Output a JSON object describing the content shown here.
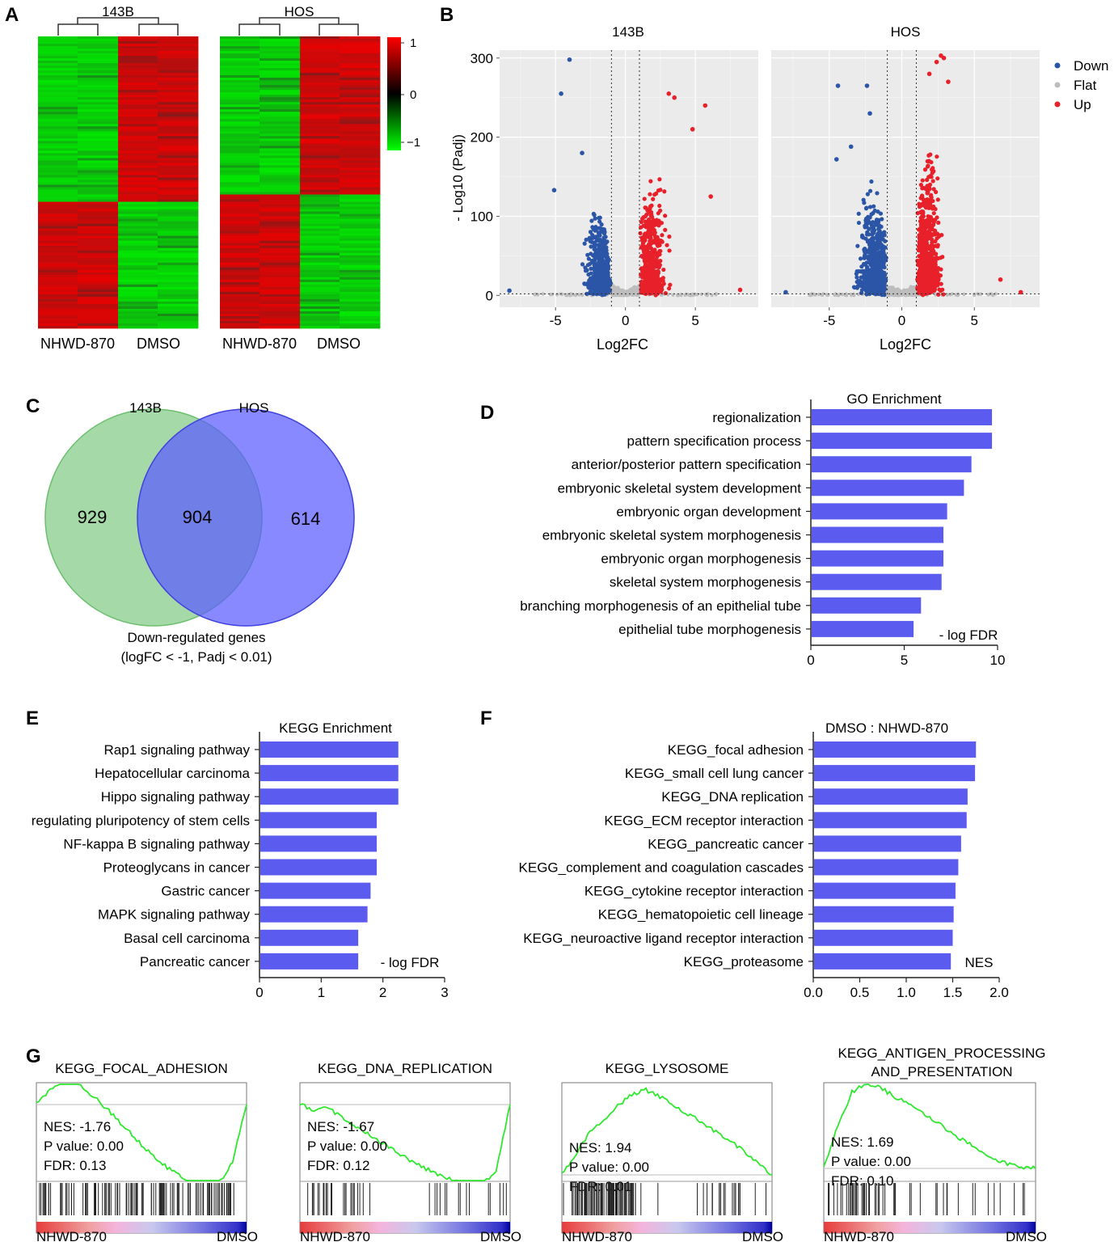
{
  "panel_labels": [
    "A",
    "B",
    "C",
    "D",
    "E",
    "F",
    "G"
  ],
  "panelA": {
    "heatmaps": [
      {
        "title": "143B",
        "samples": [
          "NHWD-870",
          "DMSO"
        ]
      },
      {
        "title": "HOS",
        "samples": [
          "NHWD-870",
          "DMSO"
        ]
      }
    ],
    "colorbar": {
      "ticks": [
        "1",
        "0",
        "−1"
      ],
      "high_color": "#ff0000",
      "mid_color": "#000000",
      "low_color": "#00ff00"
    }
  },
  "chart_data": [
    {
      "id": "volcano",
      "type": "scatter",
      "titles": [
        "143B",
        "HOS"
      ],
      "xlabel": "Log2FC",
      "ylabel": "- Log10 (Padj)",
      "xticks": [
        "-5",
        "0",
        "5"
      ],
      "yticks": [
        "0",
        "100",
        "200",
        "300"
      ],
      "xlim": [
        -9,
        9.5
      ],
      "ylim": [
        -15,
        310
      ],
      "thresholds_x": [
        -1,
        1
      ],
      "legend": [
        {
          "name": "Down",
          "color": "#2b55a6"
        },
        {
          "name": "Flat",
          "color": "#bdbdbd"
        },
        {
          "name": "Up",
          "color": "#e8202a"
        }
      ],
      "notable_points": {
        "143B": {
          "down": [
            [
              -4,
              298
            ],
            [
              -4.6,
              255
            ],
            [
              -3.1,
              180
            ],
            [
              -5.1,
              133
            ],
            [
              -8.3,
              6
            ]
          ],
          "up": [
            [
              3.1,
              255
            ],
            [
              3.5,
              250
            ],
            [
              5.7,
              240
            ],
            [
              4.8,
              210
            ],
            [
              6.1,
              125
            ],
            [
              8.2,
              7
            ]
          ]
        },
        "HOS": {
          "down": [
            [
              -4.4,
              265
            ],
            [
              -2.4,
              265
            ],
            [
              -2.2,
              230
            ],
            [
              -3.5,
              188
            ],
            [
              -4.5,
              172
            ],
            [
              -8.0,
              4
            ]
          ],
          "up": [
            [
              2.7,
              303
            ],
            [
              2.9,
              300
            ],
            [
              2.4,
              295
            ],
            [
              1.9,
              280
            ],
            [
              3.2,
              270
            ],
            [
              6.8,
              20
            ],
            [
              8.2,
              4
            ]
          ]
        }
      }
    },
    {
      "id": "venn",
      "type": "venn",
      "sets": [
        {
          "name": "143B",
          "only": 929,
          "color": "#7bc87f"
        },
        {
          "name": "HOS",
          "only": 614,
          "color": "#5b5bff"
        }
      ],
      "intersection": 904,
      "caption": "Down-regulated genes",
      "caption2": "(logFC < -1, Padj < 0.01)"
    },
    {
      "id": "go",
      "type": "bar",
      "title": "GO Enrichment",
      "xlabel": "- log FDR",
      "xticks": [
        "0",
        "5",
        "10"
      ],
      "xlim": [
        0,
        10
      ],
      "categories": [
        "regionalization",
        "pattern specification process",
        "anterior/posterior pattern specification",
        "embryonic skeletal system development",
        "embryonic organ development",
        "embryonic skeletal system morphogenesis",
        "embryonic organ morphogenesis",
        "skeletal system morphogenesis",
        "branching morphogenesis of an epithelial tube",
        "epithelial tube morphogenesis"
      ],
      "values": [
        9.7,
        9.7,
        8.6,
        8.2,
        7.3,
        7.1,
        7.1,
        7.0,
        5.9,
        5.5
      ],
      "color": "#5b5bf0"
    },
    {
      "id": "kegg",
      "type": "bar",
      "title": "KEGG Enrichment",
      "xlabel": "- log FDR",
      "xticks": [
        "0",
        "1",
        "2",
        "3"
      ],
      "xlim": [
        0,
        3
      ],
      "categories": [
        "Rap1 signaling pathway",
        "Hepatocellular carcinoma",
        "Hippo signaling pathway",
        "regulating pluripotency of stem cells",
        "NF-kappa B signaling pathway",
        "Proteoglycans in cancer",
        "Gastric cancer",
        "MAPK signaling pathway",
        "Basal cell carcinoma",
        "Pancreatic cancer"
      ],
      "values": [
        2.25,
        2.25,
        2.25,
        1.9,
        1.9,
        1.9,
        1.8,
        1.75,
        1.6,
        1.6
      ],
      "color": "#5b5bf0"
    },
    {
      "id": "gsea",
      "type": "bar",
      "title": "DMSO : NHWD-870",
      "xlabel": "NES",
      "xticks": [
        "0.0",
        "0.5",
        "1.0",
        "1.5",
        "2.0"
      ],
      "xlim": [
        0,
        2
      ],
      "categories": [
        "KEGG_focal adhesion",
        "KEGG_small cell lung cancer",
        "KEGG_DNA replication",
        "KEGG_ECM receptor interaction",
        "KEGG_pancreatic cancer",
        "KEGG_complement and coagulation cascades",
        "KEGG_cytokine receptor interaction",
        "KEGG_hematopoietic cell lineage",
        "KEGG_neuroactive ligand receptor interaction",
        "KEGG_proteasome"
      ],
      "values": [
        1.75,
        1.74,
        1.66,
        1.65,
        1.59,
        1.56,
        1.53,
        1.51,
        1.5,
        1.48
      ],
      "color": "#5b5bf0"
    },
    {
      "id": "enrichment",
      "type": "line",
      "plots": [
        {
          "title": [
            "KEGG_FOCAL_ADHESION"
          ],
          "stats": [
            "NES: -1.76",
            "P value: 0.00",
            "FDR: 0.13"
          ],
          "es": [
            0,
            0.2,
            0.38,
            0.3,
            0.12,
            -0.05,
            -0.25,
            -0.45,
            -0.65,
            -0.82,
            -0.95,
            -1.05,
            -1.12,
            -1.1,
            -0.8,
            0
          ]
        },
        {
          "title": [
            "KEGG_DNA_REPLICATION"
          ],
          "stats": [
            "NES: -1.67",
            "P value: 0.00",
            "FDR: 0.12"
          ],
          "es": [
            0,
            -0.08,
            -0.05,
            -0.18,
            -0.3,
            -0.42,
            -0.55,
            -0.67,
            -0.78,
            -0.88,
            -0.97,
            -1.05,
            -1.1,
            -1.12,
            -0.9,
            0
          ]
        },
        {
          "title": [
            "KEGG_LYSOSOME"
          ],
          "stats": [
            "NES: 1.94",
            "P value: 0.00",
            "FDR: 0.01"
          ],
          "es": [
            0,
            0.25,
            0.5,
            0.65,
            0.82,
            0.95,
            1.0,
            0.92,
            0.82,
            0.72,
            0.62,
            0.5,
            0.4,
            0.28,
            0.15,
            0
          ]
        },
        {
          "title": [
            "KEGG_ANTIGEN_PROCESSING",
            "AND_PRESENTATION"
          ],
          "stats": [
            "NES: 1.69",
            "P value: 0.00",
            "FDR: 0.10"
          ],
          "es": [
            0,
            0.5,
            0.9,
            1.0,
            0.95,
            0.85,
            0.75,
            0.65,
            0.55,
            0.42,
            0.32,
            0.22,
            0.12,
            0.05,
            0.02,
            0
          ]
        }
      ],
      "xlabel_left": "NHWD-870",
      "xlabel_right": "DMSO",
      "line_color": "#2ee82e"
    }
  ]
}
